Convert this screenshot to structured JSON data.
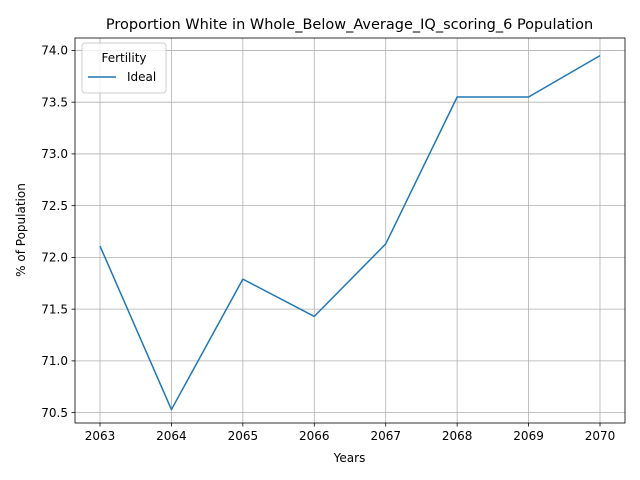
{
  "chart_data": {
    "type": "line",
    "title": "Proportion White in Whole_Below_Average_IQ_scoring_6 Population",
    "xlabel": "Years",
    "ylabel": "% of Population",
    "x": [
      2063,
      2064,
      2065,
      2066,
      2067,
      2068,
      2069,
      2070
    ],
    "xticks": [
      "2063",
      "2064",
      "2065",
      "2066",
      "2067",
      "2068",
      "2069",
      "2070"
    ],
    "yticks": [
      "70.5",
      "71.0",
      "71.5",
      "72.0",
      "72.5",
      "73.0",
      "73.5",
      "74.0"
    ],
    "ylim": [
      70.4,
      74.12
    ],
    "xlim": [
      2062.65,
      2070.35
    ],
    "grid": true,
    "legend": {
      "title": "Fertility",
      "placement": "top-left"
    },
    "series": [
      {
        "name": "Ideal",
        "color": "#1f77b4",
        "values": [
          72.11,
          70.53,
          71.79,
          71.43,
          72.13,
          73.55,
          73.55,
          73.95
        ]
      }
    ]
  }
}
